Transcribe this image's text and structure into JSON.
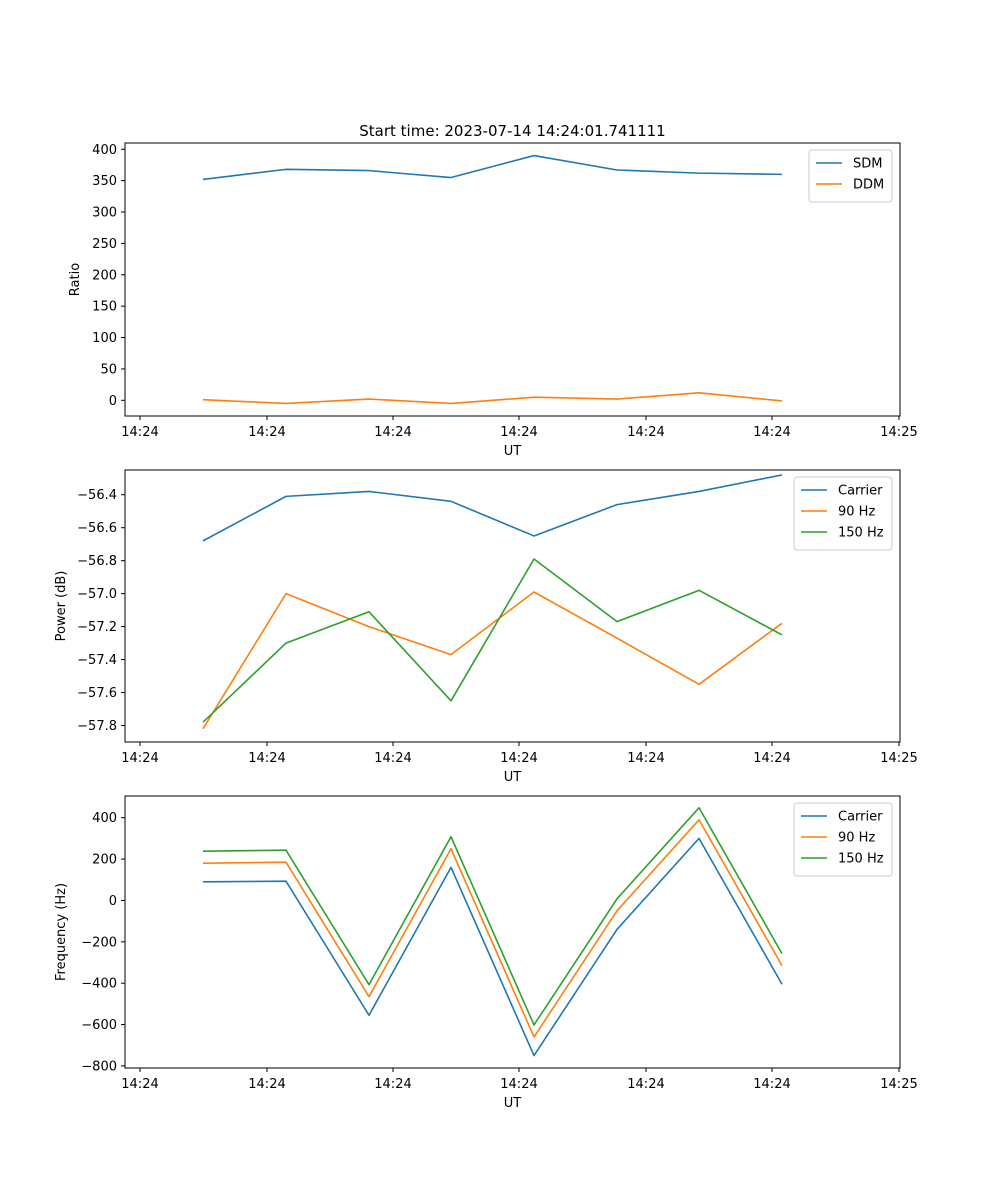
{
  "figure": {
    "title": "Start time: 2023-07-14 14:24:01.741111"
  },
  "chart_data": [
    {
      "type": "line",
      "xlabel": "UT",
      "ylabel": "Ratio",
      "xticks": [
        "14:24",
        "14:24",
        "14:24",
        "14:24",
        "14:24",
        "14:24",
        "14:25"
      ],
      "yticks": [
        "0",
        "50",
        "100",
        "150",
        "200",
        "250",
        "300",
        "350",
        "400"
      ],
      "ylim": [
        -25,
        410
      ],
      "yticks_values": [
        0,
        50,
        100,
        150,
        200,
        250,
        300,
        350,
        400
      ],
      "legend_position": "top-right",
      "series": [
        {
          "name": "SDM",
          "color": "#1f77b4",
          "values": [
            352,
            368,
            366,
            355,
            390,
            367,
            362,
            360
          ]
        },
        {
          "name": "DDM",
          "color": "#ff7f0e",
          "values": [
            1,
            -5,
            2,
            -5,
            5,
            2,
            12,
            -1
          ]
        }
      ]
    },
    {
      "type": "line",
      "xlabel": "UT",
      "ylabel": "Power (dB)",
      "xticks": [
        "14:24",
        "14:24",
        "14:24",
        "14:24",
        "14:24",
        "14:24",
        "14:25"
      ],
      "yticks": [
        "−57.8",
        "−57.6",
        "−57.4",
        "−57.2",
        "−57.0",
        "−56.8",
        "−56.6",
        "−56.4"
      ],
      "ylim": [
        -57.9,
        -56.25
      ],
      "yticks_values": [
        -57.8,
        -57.6,
        -57.4,
        -57.2,
        -57.0,
        -56.8,
        -56.6,
        -56.4
      ],
      "legend_position": "top-right",
      "series": [
        {
          "name": "Carrier",
          "color": "#1f77b4",
          "values": [
            -56.68,
            -56.41,
            -56.38,
            -56.44,
            -56.65,
            -56.46,
            -56.38,
            -56.28
          ]
        },
        {
          "name": "90 Hz",
          "color": "#ff7f0e",
          "values": [
            -57.82,
            -57.0,
            -57.2,
            -57.37,
            -56.99,
            -57.27,
            -57.55,
            -57.18
          ]
        },
        {
          "name": "150 Hz",
          "color": "#2ca02c",
          "values": [
            -57.78,
            -57.3,
            -57.11,
            -57.65,
            -56.79,
            -57.17,
            -56.98,
            -57.25
          ]
        }
      ]
    },
    {
      "type": "line",
      "xlabel": "UT",
      "ylabel": "Frequency (Hz)",
      "xticks": [
        "14:24",
        "14:24",
        "14:24",
        "14:24",
        "14:24",
        "14:24",
        "14:25"
      ],
      "yticks": [
        "−800",
        "−600",
        "−400",
        "−200",
        "0",
        "200",
        "400"
      ],
      "ylim": [
        -810,
        505
      ],
      "yticks_values": [
        -800,
        -600,
        -400,
        -200,
        0,
        200,
        400
      ],
      "legend_position": "top-right",
      "series": [
        {
          "name": "Carrier",
          "color": "#1f77b4",
          "values": [
            90,
            93,
            -555,
            160,
            -750,
            -140,
            300,
            -405
          ]
        },
        {
          "name": "90 Hz",
          "color": "#ff7f0e",
          "values": [
            180,
            185,
            -465,
            250,
            -660,
            -50,
            390,
            -315
          ]
        },
        {
          "name": "150 Hz",
          "color": "#2ca02c",
          "values": [
            238,
            243,
            -407,
            308,
            -602,
            8,
            448,
            -257
          ]
        }
      ]
    }
  ]
}
